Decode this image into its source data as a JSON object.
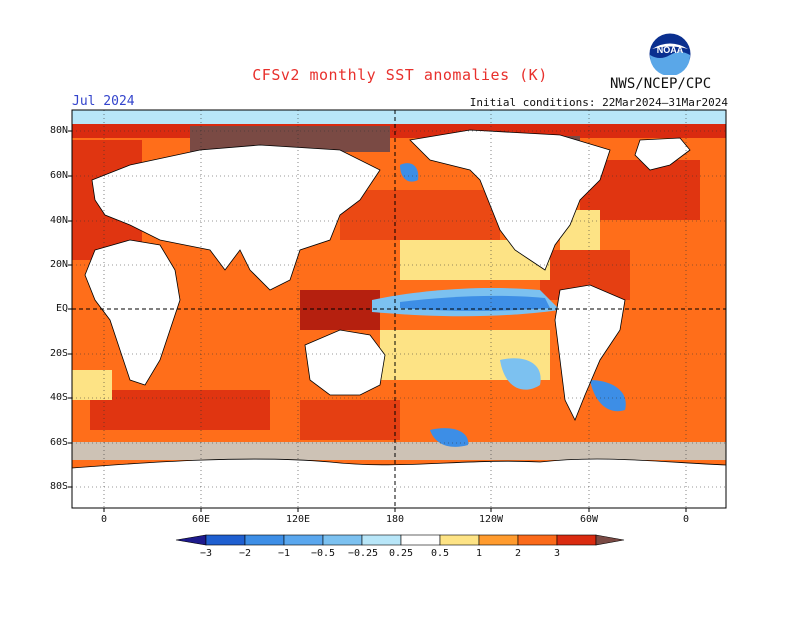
{
  "header": {
    "title": "CFSv2 monthly SST anomalies (K)",
    "source": "NWS/NCEP/CPC",
    "forecast_month": "Jul 2024",
    "initial_conditions": "Initial conditions: 22Mar2024–31Mar2024",
    "logo_text": "NOAA"
  },
  "map": {
    "lat_labels": [
      "80N",
      "60N",
      "40N",
      "20N",
      "EQ",
      "20S",
      "40S",
      "60S",
      "80S"
    ],
    "lon_labels": [
      "0",
      "60E",
      "120E",
      "180",
      "120W",
      "60W",
      "0"
    ]
  },
  "colorbar": {
    "labels": [
      "−3",
      "−2",
      "−1",
      "−0.5",
      "−0.25",
      "0.25",
      "0.5",
      "1",
      "2",
      "3"
    ],
    "colors": [
      "#1e1a8c",
      "#1f5fd0",
      "#3d8ee6",
      "#7cc1f0",
      "#b8e6f8",
      "#ffffff",
      "#fde385",
      "#ff9b2e",
      "#fb6a1a",
      "#da2b10",
      "#a30c0c",
      "#7a4a44"
    ]
  },
  "colors": {
    "title": "#e8302c",
    "month": "#3344cc",
    "orange": "#ff6e1a",
    "red": "#d72a10",
    "yellow": "#fde385",
    "lightblue": "#b8e6f8",
    "blue": "#3d8ee6",
    "land": "#ffffff"
  }
}
